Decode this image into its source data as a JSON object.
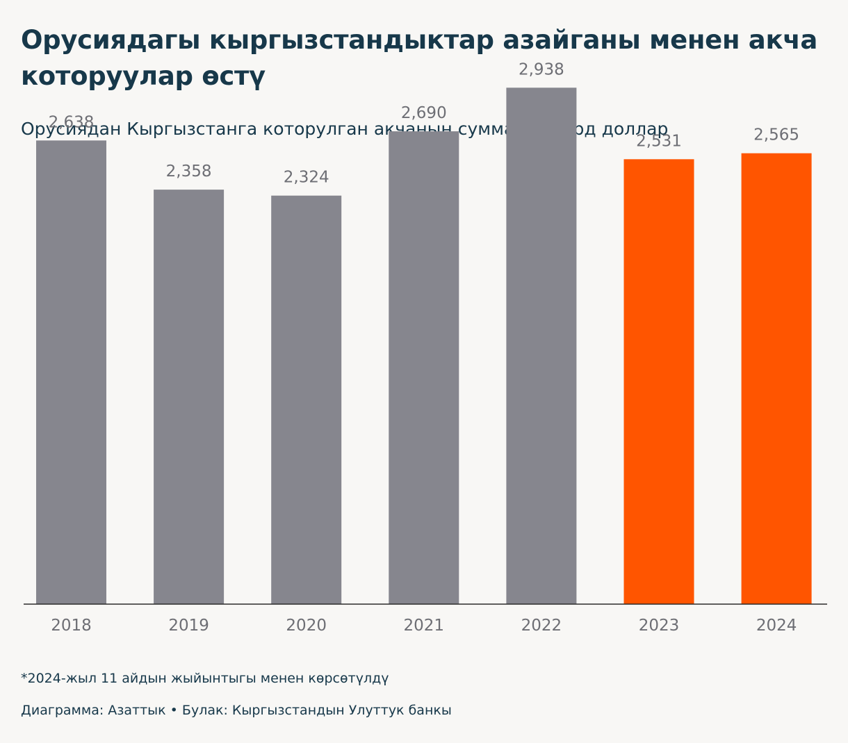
{
  "header": {
    "title": "Орусиядагы кыргызстандыктар азайганы менен акча которуулар өстү",
    "subtitle": "Орусиядан Кыргызстанга которулган акчанын суммасы, млрд доллар"
  },
  "footer": {
    "footnote": "*2024-жыл 11 айдын жыйынтыгы менен көрсөтүлдү",
    "credits": "Диаграмма: Азаттык • Булак: Кыргызстандын Улуттук банкы"
  },
  "colors": {
    "background": "#f8f7f5",
    "text": "#17384a",
    "bar_default": "#86868e",
    "bar_highlight": "#ff5500",
    "axis": "#2b2b2b",
    "label": "#6d6e74"
  },
  "chart_data": {
    "type": "bar",
    "title": "Орусиядагы кыргызстандыктар азайганы менен акча которуулар өстү",
    "subtitle": "Орусиядан Кыргызстанга которулган акчанын суммасы, млрд доллар",
    "xlabel": "",
    "ylabel": "",
    "categories": [
      "2018",
      "2019",
      "2020",
      "2021",
      "2022",
      "2023",
      "2024"
    ],
    "values": [
      2.638,
      2.358,
      2.324,
      2.69,
      2.938,
      2.531,
      2.565
    ],
    "value_labels": [
      "2,638",
      "2,358",
      "2,324",
      "2,690",
      "2,938",
      "2,531",
      "2,565"
    ],
    "highlighted": [
      false,
      false,
      false,
      false,
      false,
      true,
      true
    ],
    "ylim": [
      0,
      3.2
    ],
    "grid": false,
    "legend": "none"
  }
}
